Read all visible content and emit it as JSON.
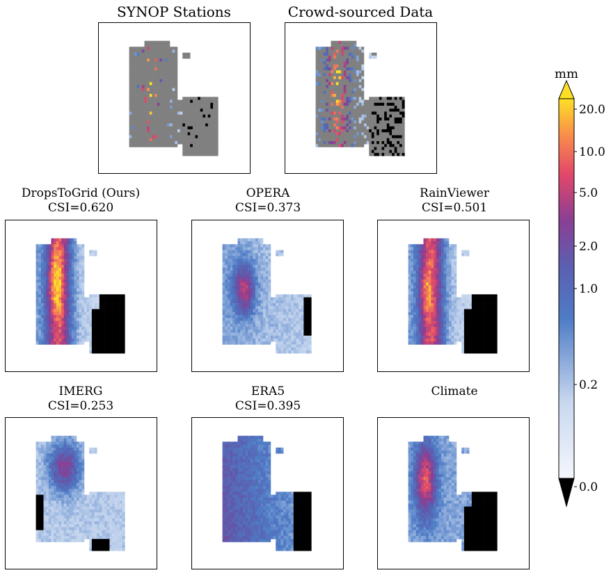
{
  "chart_data": {
    "type": "heatmap",
    "panels": [
      {
        "id": "synop",
        "title": "SYNOP Stations",
        "csi": ""
      },
      {
        "id": "crowd",
        "title": "Crowd-sourced Data",
        "csi": ""
      },
      {
        "id": "dropstogrid",
        "title": "DropsToGrid (Ours)",
        "csi": "CSI=0.620"
      },
      {
        "id": "opera",
        "title": "OPERA",
        "csi": "CSI=0.373"
      },
      {
        "id": "rainviewer",
        "title": "RainViewer",
        "csi": "CSI=0.501"
      },
      {
        "id": "imerg",
        "title": "IMERG",
        "csi": "CSI=0.253"
      },
      {
        "id": "era5",
        "title": "ERA5",
        "csi": "CSI=0.395"
      },
      {
        "id": "climate",
        "title": "Climate",
        "csi": ""
      }
    ],
    "colorbar": {
      "unit": "mm",
      "ticks": [
        "20.0",
        "10.0",
        "5.0",
        "2.0",
        "1.0",
        "0.2",
        "0.0"
      ],
      "extend": "both",
      "colors": {
        "zero": "#000000",
        "low": "#eef2fa",
        "mid_low": "#4a78c4",
        "mid": "#6a4aa0",
        "mid_high": "#e84a6a",
        "high": "#fde025",
        "nodata": "#808080"
      }
    }
  }
}
